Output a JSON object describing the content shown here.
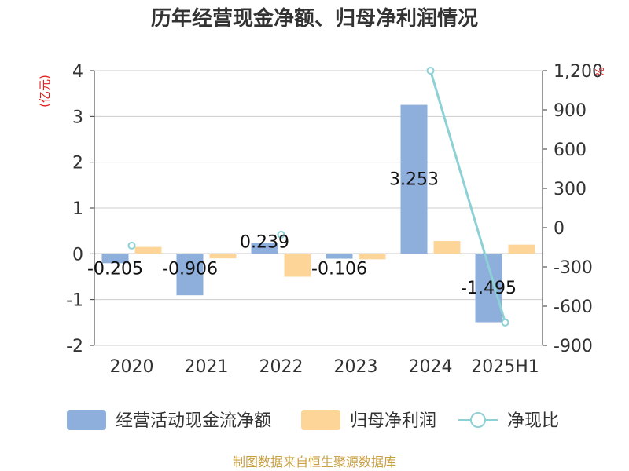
{
  "header": {
    "title": "历年经营现金净额、归母净利润情况"
  },
  "units": {
    "left": "(亿元)",
    "right": "%"
  },
  "footer": {
    "source": "制图数据来自恒生聚源数据库"
  },
  "colors": {
    "ocf": "#8eaedb",
    "profit": "#fdd598",
    "ratio": "#8dd0d6",
    "axis": "#333333",
    "grid": "#cccccc"
  },
  "chart_data": {
    "type": "bar",
    "title": "历年经营现金净额、归母净利润情况",
    "categories": [
      "2020",
      "2021",
      "2022",
      "2023",
      "2024",
      "2025H1"
    ],
    "series": [
      {
        "name": "经营活动现金流净额",
        "type": "bar",
        "axis": "left",
        "values": [
          -0.205,
          -0.906,
          0.239,
          -0.106,
          3.253,
          -1.495
        ],
        "labels": [
          "-0.205",
          "-0.906",
          "0.239",
          "-0.106",
          "3.253",
          "-1.495"
        ]
      },
      {
        "name": "归母净利润",
        "type": "bar",
        "axis": "left",
        "values": [
          0.15,
          -0.1,
          -0.5,
          -0.12,
          0.28,
          0.2
        ]
      },
      {
        "name": "净现比",
        "type": "line",
        "axis": "right",
        "values": [
          -137,
          null,
          -53,
          null,
          1200,
          -725
        ]
      }
    ],
    "y_left": {
      "min": -2,
      "max": 4,
      "ticks": [
        "-2",
        "-1",
        "0",
        "1",
        "2",
        "3",
        "4"
      ],
      "tick_values": [
        -2,
        -1,
        0,
        1,
        2,
        3,
        4
      ]
    },
    "y_right": {
      "min": -900,
      "max": 1200,
      "ticks": [
        "-900",
        "-600",
        "-300",
        "0",
        "300",
        "600",
        "900",
        "1,200"
      ],
      "tick_values": [
        -900,
        -600,
        -300,
        0,
        300,
        600,
        900,
        1200
      ]
    },
    "grid": true,
    "legend_position": "bottom"
  }
}
